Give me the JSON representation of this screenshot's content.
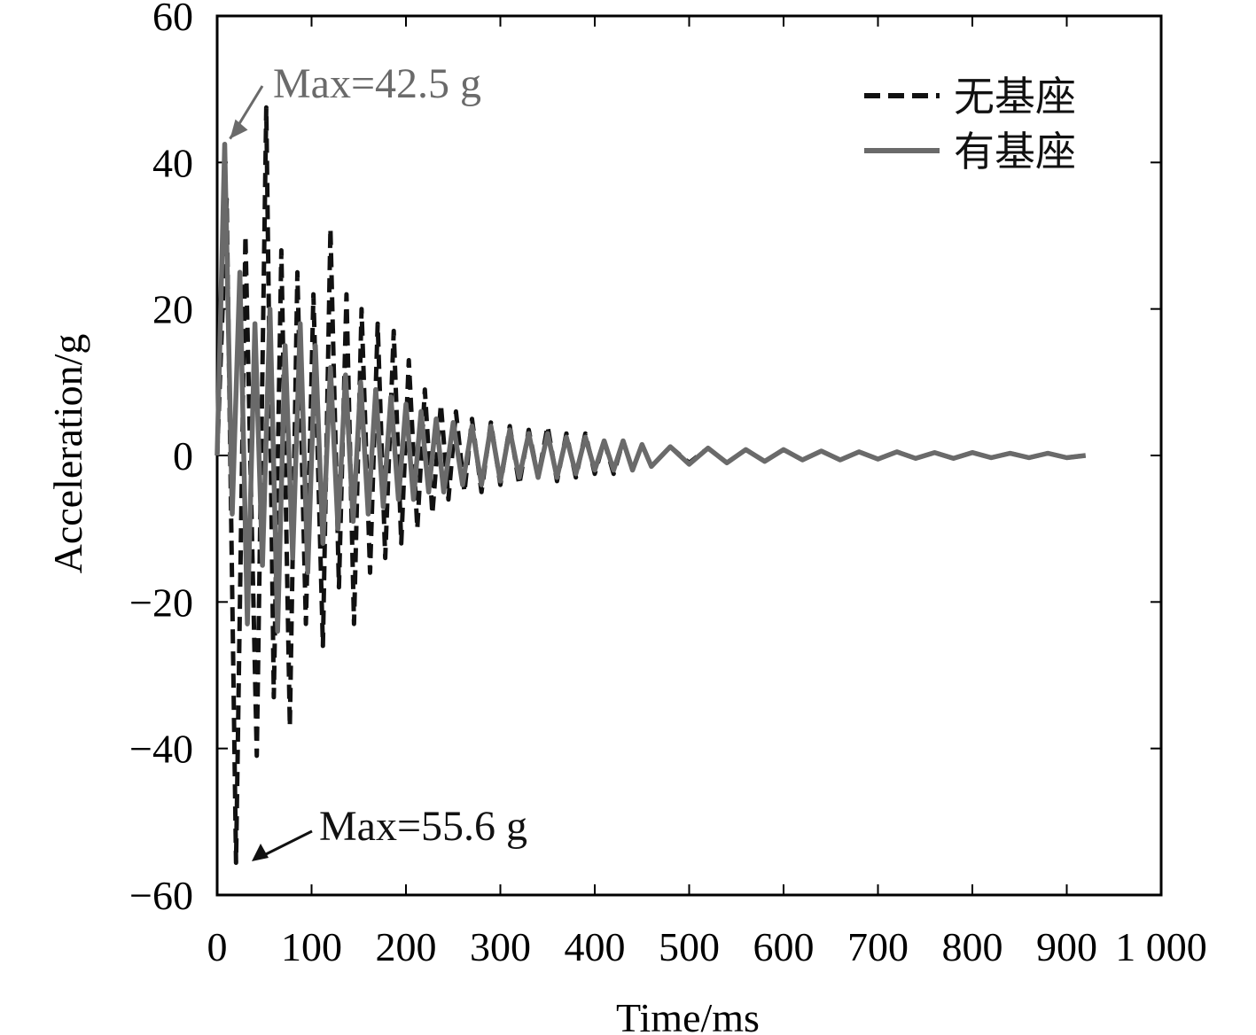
{
  "chart_data": {
    "type": "line",
    "title": "",
    "xlabel": "Time/ms",
    "ylabel": "Acceleration/g",
    "xlim": [
      0,
      1000
    ],
    "ylim": [
      -60,
      60
    ],
    "x_ticks": [
      0,
      100,
      200,
      300,
      400,
      500,
      600,
      700,
      800,
      900,
      1000
    ],
    "x_tick_labels": [
      "0",
      "100",
      "200",
      "300",
      "400",
      "500",
      "600",
      "700",
      "800",
      "900",
      "1 000"
    ],
    "y_ticks": [
      -60,
      -40,
      -20,
      0,
      20,
      40,
      60
    ],
    "y_tick_labels": [
      "−60",
      "−40",
      "−20",
      "0",
      "20",
      "40",
      "60"
    ],
    "grid": false,
    "legend_position": "top-right",
    "series": [
      {
        "name": "无基座",
        "style": "dashed",
        "color": "#111111",
        "x": [
          0,
          10,
          20,
          30,
          42,
          52,
          60,
          68,
          77,
          85,
          94,
          102,
          112,
          120,
          129,
          137,
          145,
          153,
          162,
          170,
          178,
          187,
          195,
          203,
          212,
          220,
          228,
          237,
          245,
          253,
          262,
          270,
          280,
          290,
          300,
          310,
          320,
          330,
          340,
          350,
          360,
          370,
          380,
          390,
          400,
          410,
          420,
          430,
          440,
          450,
          460,
          480,
          500,
          520,
          540,
          560,
          580,
          600,
          620,
          640,
          660,
          680,
          700,
          720,
          740,
          760,
          780,
          800,
          820,
          840,
          860,
          880,
          900,
          920
        ],
        "y": [
          0,
          35,
          -55.6,
          30,
          -41,
          47.5,
          -33,
          28,
          -37,
          25,
          -23,
          22,
          -26,
          31,
          -18,
          22,
          -23,
          20,
          -16,
          18,
          -14,
          17,
          -12,
          13,
          -10,
          9,
          -8,
          7,
          -6,
          6,
          -5,
          5,
          -5,
          4.5,
          -4,
          4,
          -4,
          3.5,
          -3,
          4,
          -3.5,
          3,
          -3,
          3,
          -2.5,
          2,
          -2.5,
          2,
          -2,
          1.5,
          -1.5,
          1.2,
          -1,
          1,
          -1,
          0.8,
          -0.8,
          0.8,
          -0.6,
          0.6,
          -0.6,
          0.5,
          -0.5,
          0.5,
          -0.4,
          0.4,
          -0.4,
          0.4,
          -0.3,
          0.3,
          -0.3,
          0.3,
          -0.3,
          0
        ]
      },
      {
        "name": "有基座",
        "style": "solid",
        "color": "#6a6a6a",
        "x": [
          0,
          8,
          16,
          24,
          32,
          40,
          48,
          56,
          64,
          72,
          80,
          88,
          96,
          104,
          112,
          120,
          128,
          136,
          144,
          152,
          160,
          168,
          176,
          184,
          192,
          200,
          208,
          216,
          224,
          232,
          240,
          250,
          260,
          270,
          280,
          290,
          300,
          310,
          320,
          330,
          340,
          350,
          360,
          370,
          380,
          390,
          400,
          410,
          420,
          430,
          440,
          450,
          460,
          480,
          500,
          520,
          540,
          560,
          580,
          600,
          620,
          640,
          660,
          680,
          700,
          720,
          740,
          760,
          780,
          800,
          820,
          840,
          860,
          880,
          900,
          920
        ],
        "y": [
          0,
          42.5,
          -8,
          25,
          -23,
          18,
          -15,
          20,
          -24,
          15,
          -14,
          18,
          -16,
          15,
          -12,
          12,
          -10,
          11,
          -9,
          10,
          -8,
          9,
          -7,
          8,
          -6,
          7,
          -6,
          6,
          -5,
          5,
          -5,
          4.5,
          -4,
          4,
          -4,
          4,
          -3.5,
          3.5,
          -3,
          3,
          -3,
          3,
          -3,
          2.5,
          -2.5,
          2.5,
          -2,
          2,
          -2,
          2,
          -2,
          1.5,
          -1.5,
          1.2,
          -1.2,
          1,
          -1,
          0.8,
          -0.8,
          0.8,
          -0.6,
          0.6,
          -0.6,
          0.5,
          -0.5,
          0.5,
          -0.4,
          0.4,
          -0.4,
          0.4,
          -0.3,
          0.3,
          -0.3,
          0.3,
          -0.3,
          0
        ]
      }
    ],
    "annotations": [
      {
        "text": "Max=42.5 g",
        "color": "#6a6a6a",
        "x": 8,
        "y": 42.5
      },
      {
        "text": "Max=55.6 g",
        "color": "#111111",
        "x": 20,
        "y": -55.6
      }
    ]
  }
}
